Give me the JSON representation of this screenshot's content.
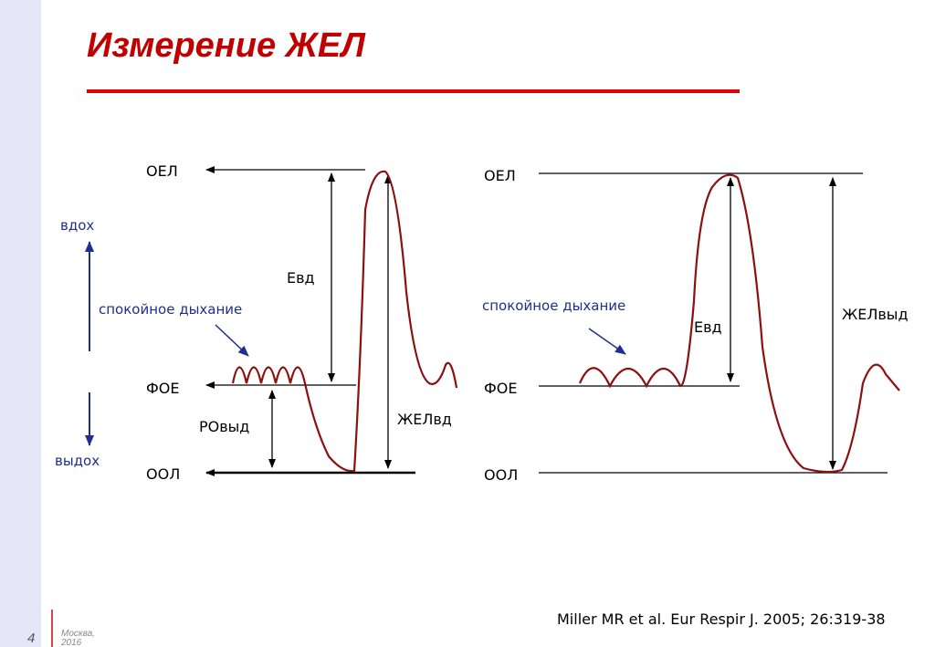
{
  "header": {
    "title": "Измерение ЖЕЛ"
  },
  "left_diagram": {
    "tlc": "ОЕЛ",
    "frc": "ФОЕ",
    "rv": "ООЛ",
    "inhale": "вдох",
    "exhale": "выдох",
    "quiet_breathing": "спокойное дыхание",
    "ic": "Евд",
    "erv": "РОвыд",
    "ivc": "ЖЕЛвд"
  },
  "right_diagram": {
    "tlc": "ОЕЛ",
    "frc": "ФОЕ",
    "rv": "ООЛ",
    "quiet_breathing": "спокойное дыхание",
    "ic": "Евд",
    "evc": "ЖЕЛвыд"
  },
  "footer": {
    "citation": "Miller MR et al. Eur Respir J. 2005; 26:319-38",
    "page_number": "4",
    "city": "Москва,",
    "year": "2016"
  }
}
